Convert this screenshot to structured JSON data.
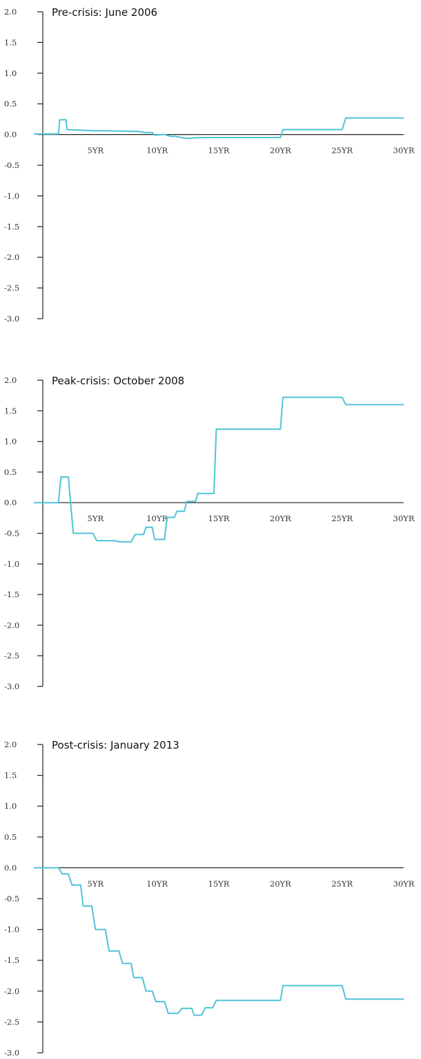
{
  "colors": {
    "series": "#4ec3d8",
    "axis": "#222222",
    "text": "#333333"
  },
  "chart_data": [
    {
      "type": "line",
      "title": "Pre-crisis: June 2006",
      "yticks": [
        "2.0",
        "1.5",
        "1.0",
        "0.5",
        "0.0",
        "-0.5",
        "-1.0",
        "-1.5",
        "-2.0",
        "-2.5",
        "-3.0"
      ],
      "xticks": [
        "5YR",
        "10YR",
        "15YR",
        "20YR",
        "25YR",
        "30YR"
      ],
      "xlim": [
        0,
        30
      ],
      "ylim": [
        -3,
        2
      ],
      "grid": false,
      "series": [
        {
          "x": [
            0,
            2,
            2.1,
            2.6,
            2.7,
            5,
            6,
            8.5,
            9,
            9.6,
            9.8,
            10.6,
            11.1,
            11.5,
            12.2,
            12.5,
            13.5,
            14,
            20,
            20.2,
            25,
            25.3,
            30
          ],
          "y": [
            0.01,
            0.01,
            0.24,
            0.24,
            0.08,
            0.06,
            0.06,
            0.05,
            0.03,
            0.03,
            -0.01,
            0.0,
            -0.03,
            -0.03,
            -0.06,
            -0.06,
            -0.05,
            -0.05,
            -0.05,
            0.08,
            0.08,
            0.27,
            0.27
          ]
        }
      ]
    },
    {
      "type": "line",
      "title": "Peak-crisis: October 2008",
      "yticks": [
        "2.0",
        "1.5",
        "1.0",
        "0.5",
        "0.0",
        "-0.5",
        "-1.0",
        "-1.5",
        "-2.0",
        "-2.5",
        "-3.0"
      ],
      "xticks": [
        "5YR",
        "10YR",
        "15YR",
        "20YR",
        "25YR",
        "30YR"
      ],
      "xlim": [
        0,
        30
      ],
      "ylim": [
        -3,
        2
      ],
      "grid": false,
      "series": [
        {
          "x": [
            0,
            2,
            2.2,
            2.8,
            3.2,
            4.8,
            5.1,
            6.5,
            7,
            7.9,
            8.2,
            8.9,
            9.1,
            9.6,
            9.8,
            10.6,
            10.8,
            11.4,
            11.6,
            12.2,
            12.4,
            13.1,
            13.3,
            13.8,
            14,
            14.6,
            14.8,
            15.1,
            20,
            20.2,
            25,
            25.3,
            30
          ],
          "y": [
            0.0,
            0.0,
            0.42,
            0.42,
            -0.5,
            -0.5,
            -0.62,
            -0.62,
            -0.64,
            -0.64,
            -0.52,
            -0.52,
            -0.4,
            -0.4,
            -0.6,
            -0.6,
            -0.24,
            -0.24,
            -0.14,
            -0.14,
            0.02,
            0.02,
            0.15,
            0.15,
            0.15,
            0.15,
            1.2,
            1.2,
            1.2,
            1.72,
            1.72,
            1.6,
            1.6
          ]
        }
      ]
    },
    {
      "type": "line",
      "title": "Post-crisis: January 2013",
      "yticks": [
        "2.0",
        "1.5",
        "1.0",
        "0.5",
        "0.0",
        "-0.5",
        "-1.0",
        "-1.5",
        "-2.0",
        "-2.5",
        "-3.0"
      ],
      "xticks": [
        "5YR",
        "10YR",
        "15YR",
        "20YR",
        "25YR",
        "30YR"
      ],
      "xlim": [
        0,
        30
      ],
      "ylim": [
        -3,
        2
      ],
      "grid": false,
      "series": [
        {
          "x": [
            0,
            2,
            2.3,
            2.8,
            3.1,
            3.8,
            4,
            4.7,
            5,
            5.8,
            6.1,
            6.9,
            7.2,
            7.9,
            8.1,
            8.8,
            9.1,
            9.6,
            9.9,
            10.6,
            10.9,
            11.7,
            12,
            12.8,
            13,
            13.6,
            13.9,
            14.5,
            14.8,
            20,
            20.2,
            25,
            25.3,
            30
          ],
          "y": [
            0.0,
            0.0,
            -0.1,
            -0.1,
            -0.28,
            -0.28,
            -0.62,
            -0.62,
            -1.0,
            -1.0,
            -1.35,
            -1.35,
            -1.55,
            -1.55,
            -1.78,
            -1.78,
            -2.0,
            -2.0,
            -2.17,
            -2.17,
            -2.36,
            -2.36,
            -2.28,
            -2.28,
            -2.39,
            -2.39,
            -2.27,
            -2.27,
            -2.15,
            -2.15,
            -1.91,
            -1.91,
            -2.13,
            -2.13
          ]
        }
      ]
    }
  ]
}
